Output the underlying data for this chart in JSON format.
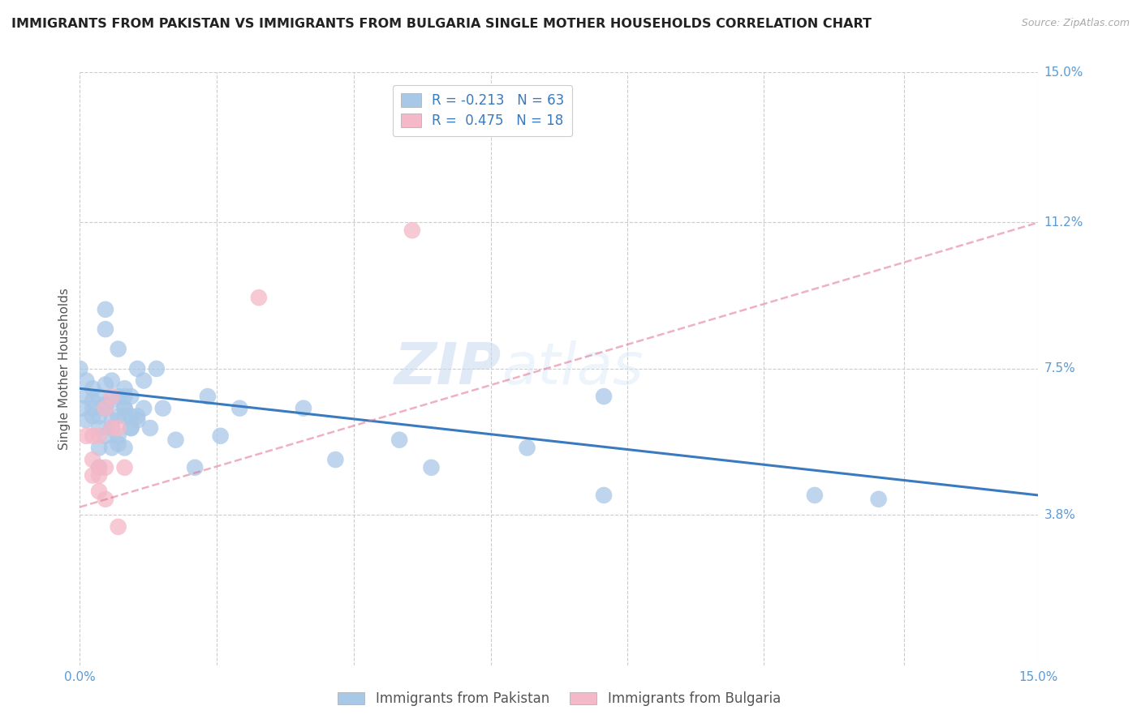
{
  "title": "IMMIGRANTS FROM PAKISTAN VS IMMIGRANTS FROM BULGARIA SINGLE MOTHER HOUSEHOLDS CORRELATION CHART",
  "source": "Source: ZipAtlas.com",
  "ylabel": "Single Mother Households",
  "xlim": [
    0.0,
    0.15
  ],
  "ylim": [
    0.0,
    0.15
  ],
  "ytick_labels": [
    "3.8%",
    "7.5%",
    "11.2%",
    "15.0%"
  ],
  "ytick_values": [
    0.038,
    0.075,
    0.112,
    0.15
  ],
  "xtick_labels": [
    "0.0%",
    "15.0%"
  ],
  "xtick_values": [
    0.0,
    0.15
  ],
  "watermark_zip": "ZIP",
  "watermark_atlas": "atlas",
  "pakistan_R": -0.213,
  "pakistan_N": 63,
  "bulgaria_R": 0.475,
  "bulgaria_N": 18,
  "pakistan_color": "#a8c8e8",
  "pakistan_line_color": "#3a7abf",
  "bulgaria_color": "#f4b8c8",
  "bulgaria_line_color": "#e07090",
  "pakistan_scatter": [
    [
      0.0,
      0.075
    ],
    [
      0.0005,
      0.065
    ],
    [
      0.001,
      0.062
    ],
    [
      0.001,
      0.072
    ],
    [
      0.001,
      0.068
    ],
    [
      0.002,
      0.063
    ],
    [
      0.002,
      0.07
    ],
    [
      0.002,
      0.065
    ],
    [
      0.002,
      0.067
    ],
    [
      0.003,
      0.06
    ],
    [
      0.003,
      0.055
    ],
    [
      0.003,
      0.05
    ],
    [
      0.003,
      0.068
    ],
    [
      0.003,
      0.063
    ],
    [
      0.004,
      0.058
    ],
    [
      0.004,
      0.071
    ],
    [
      0.004,
      0.066
    ],
    [
      0.004,
      0.09
    ],
    [
      0.004,
      0.085
    ],
    [
      0.004,
      0.065
    ],
    [
      0.005,
      0.06
    ],
    [
      0.005,
      0.055
    ],
    [
      0.005,
      0.062
    ],
    [
      0.005,
      0.072
    ],
    [
      0.005,
      0.067
    ],
    [
      0.005,
      0.06
    ],
    [
      0.006,
      0.056
    ],
    [
      0.006,
      0.08
    ],
    [
      0.006,
      0.068
    ],
    [
      0.006,
      0.063
    ],
    [
      0.006,
      0.058
    ],
    [
      0.007,
      0.065
    ],
    [
      0.007,
      0.068
    ],
    [
      0.007,
      0.063
    ],
    [
      0.007,
      0.055
    ],
    [
      0.007,
      0.07
    ],
    [
      0.007,
      0.065
    ],
    [
      0.008,
      0.06
    ],
    [
      0.008,
      0.06
    ],
    [
      0.008,
      0.068
    ],
    [
      0.008,
      0.063
    ],
    [
      0.009,
      0.062
    ],
    [
      0.009,
      0.075
    ],
    [
      0.009,
      0.063
    ],
    [
      0.01,
      0.072
    ],
    [
      0.01,
      0.065
    ],
    [
      0.011,
      0.06
    ],
    [
      0.012,
      0.075
    ],
    [
      0.013,
      0.065
    ],
    [
      0.015,
      0.057
    ],
    [
      0.018,
      0.05
    ],
    [
      0.02,
      0.068
    ],
    [
      0.022,
      0.058
    ],
    [
      0.025,
      0.065
    ],
    [
      0.035,
      0.065
    ],
    [
      0.04,
      0.052
    ],
    [
      0.05,
      0.057
    ],
    [
      0.055,
      0.05
    ],
    [
      0.07,
      0.055
    ],
    [
      0.082,
      0.068
    ],
    [
      0.082,
      0.043
    ],
    [
      0.115,
      0.043
    ],
    [
      0.125,
      0.042
    ]
  ],
  "bulgaria_scatter": [
    [
      0.001,
      0.058
    ],
    [
      0.002,
      0.048
    ],
    [
      0.002,
      0.052
    ],
    [
      0.002,
      0.058
    ],
    [
      0.003,
      0.05
    ],
    [
      0.003,
      0.048
    ],
    [
      0.003,
      0.044
    ],
    [
      0.003,
      0.058
    ],
    [
      0.004,
      0.065
    ],
    [
      0.004,
      0.05
    ],
    [
      0.004,
      0.042
    ],
    [
      0.005,
      0.06
    ],
    [
      0.005,
      0.068
    ],
    [
      0.006,
      0.06
    ],
    [
      0.006,
      0.035
    ],
    [
      0.007,
      0.05
    ],
    [
      0.028,
      0.093
    ],
    [
      0.052,
      0.11
    ]
  ],
  "pakistan_line_x": [
    0.0,
    0.15
  ],
  "pakistan_line_y": [
    0.07,
    0.043
  ],
  "bulgaria_line_x": [
    0.0,
    0.15
  ],
  "bulgaria_line_y": [
    0.04,
    0.112
  ],
  "grid_color": "#cccccc",
  "background_color": "#ffffff",
  "title_fontsize": 11.5,
  "axis_label_fontsize": 11,
  "tick_fontsize": 11,
  "legend_fontsize": 12
}
